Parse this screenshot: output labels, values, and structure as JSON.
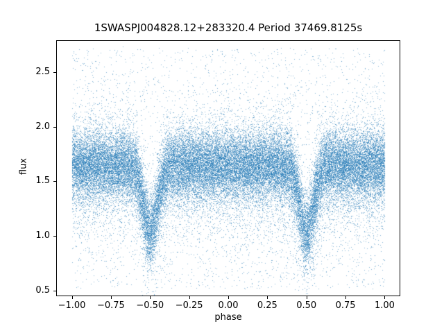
{
  "figure": {
    "background_color": "#ffffff",
    "text_color": "#000000"
  },
  "chart_data": {
    "type": "scatter",
    "title": "1SWASPJ004828.12+283320.4 Period 37469.8125s",
    "xlabel": "phase",
    "ylabel": "flux",
    "xlim": [
      -1.1,
      1.1
    ],
    "ylim": [
      0.45,
      2.79
    ],
    "xticks": {
      "values": [
        -1.0,
        -0.75,
        -0.5,
        -0.25,
        0.0,
        0.25,
        0.5,
        0.75,
        1.0
      ],
      "labels": [
        "−1.00",
        "−0.75",
        "−0.50",
        "−0.25",
        "0.00",
        "0.25",
        "0.50",
        "0.75",
        "1.00"
      ]
    },
    "yticks": {
      "values": [
        0.5,
        1.0,
        1.5,
        2.0,
        2.5
      ],
      "labels": [
        "0.5",
        "1.0",
        "1.5",
        "2.0",
        "2.5"
      ]
    },
    "grid": false,
    "legend": null,
    "marker_color": "#1f77b4",
    "marker_alpha": 0.55,
    "marker_size_px": 1,
    "description": "Phase-folded light curve of an eclipsing binary: dense flux band near 1.65 across phase −1 to 1, with deep eclipse dips centered at phase −0.5 and +0.5 reaching flux ≈ 1.0, plus sparse noise outliers from ≈0.5 to ≈2.7.",
    "scatter_model": {
      "seed": 42,
      "n_points": 48000,
      "x_range": [
        -1.0,
        1.0
      ],
      "components": {
        "core": {
          "fraction": 0.74,
          "mean_flux": 1.65,
          "sigma": 0.155
        },
        "mid": {
          "fraction": 0.2,
          "mean_flux": 1.55,
          "sigma": 0.3
        }
      },
      "outliers": {
        "fraction": 0.06,
        "flux_range": [
          0.52,
          2.72
        ]
      },
      "dips": [
        {
          "phase": -0.5,
          "depth": 0.6,
          "sigma_phase": 0.045
        },
        {
          "phase": 0.5,
          "depth": 0.6,
          "sigma_phase": 0.045
        }
      ]
    }
  }
}
